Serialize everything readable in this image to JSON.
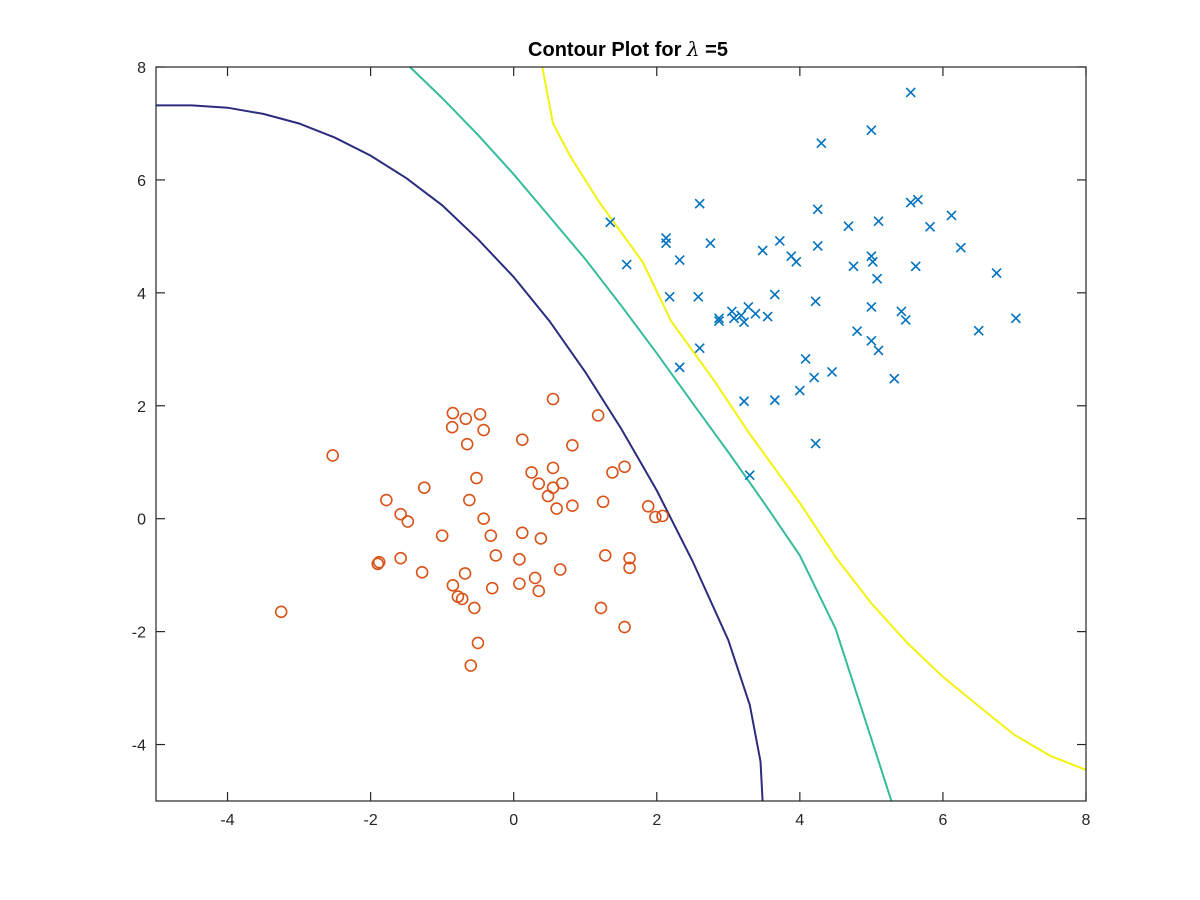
{
  "chart_data": {
    "type": "scatter",
    "title_prefix": "Contour Plot for ",
    "title_symbol": "λ",
    "title_suffix": " =5",
    "xlabel": "",
    "ylabel": "",
    "xlim": [
      -5,
      8
    ],
    "ylim": [
      -5,
      8
    ],
    "xticks": [
      -4,
      -2,
      0,
      2,
      4,
      6,
      8
    ],
    "yticks": [
      -4,
      -2,
      0,
      2,
      4,
      6,
      8
    ],
    "xtick_labels": [
      "-4",
      "-2",
      "0",
      "2",
      "4",
      "6",
      "8"
    ],
    "ytick_labels": [
      "-4",
      "-2",
      "0",
      "2",
      "4",
      "6",
      "8"
    ],
    "grid": false,
    "series": [
      {
        "marker": "x",
        "color": "#0072bd",
        "points": [
          [
            5.55,
            7.55
          ],
          [
            4.3,
            6.65
          ],
          [
            5.0,
            6.88
          ],
          [
            2.6,
            5.58
          ],
          [
            1.35,
            5.25
          ],
          [
            5.55,
            5.6
          ],
          [
            5.65,
            5.65
          ],
          [
            6.12,
            5.37
          ],
          [
            5.1,
            5.27
          ],
          [
            4.25,
            5.48
          ],
          [
            4.68,
            5.18
          ],
          [
            5.82,
            5.17
          ],
          [
            2.13,
            4.97
          ],
          [
            2.13,
            4.88
          ],
          [
            2.75,
            4.88
          ],
          [
            3.72,
            4.92
          ],
          [
            4.25,
            4.83
          ],
          [
            6.25,
            4.8
          ],
          [
            3.48,
            4.75
          ],
          [
            3.88,
            4.65
          ],
          [
            5.0,
            4.65
          ],
          [
            1.58,
            4.5
          ],
          [
            2.32,
            4.58
          ],
          [
            3.95,
            4.55
          ],
          [
            5.02,
            4.55
          ],
          [
            4.75,
            4.47
          ],
          [
            5.62,
            4.47
          ],
          [
            6.75,
            4.35
          ],
          [
            5.08,
            4.25
          ],
          [
            2.18,
            3.93
          ],
          [
            2.58,
            3.93
          ],
          [
            3.65,
            3.97
          ],
          [
            4.22,
            3.85
          ],
          [
            3.28,
            3.75
          ],
          [
            5.0,
            3.75
          ],
          [
            3.05,
            3.67
          ],
          [
            3.18,
            3.6
          ],
          [
            3.38,
            3.63
          ],
          [
            3.55,
            3.58
          ],
          [
            5.42,
            3.67
          ],
          [
            7.02,
            3.55
          ],
          [
            2.87,
            3.55
          ],
          [
            2.87,
            3.5
          ],
          [
            3.08,
            3.55
          ],
          [
            3.22,
            3.48
          ],
          [
            5.48,
            3.52
          ],
          [
            6.5,
            3.33
          ],
          [
            4.8,
            3.32
          ],
          [
            2.6,
            3.02
          ],
          [
            5.0,
            3.15
          ],
          [
            5.1,
            2.98
          ],
          [
            4.08,
            2.83
          ],
          [
            2.32,
            2.68
          ],
          [
            4.45,
            2.6
          ],
          [
            4.2,
            2.5
          ],
          [
            5.32,
            2.48
          ],
          [
            4.0,
            2.27
          ],
          [
            3.22,
            2.08
          ],
          [
            3.65,
            2.1
          ],
          [
            4.22,
            1.33
          ],
          [
            3.3,
            0.77
          ]
        ]
      },
      {
        "marker": "o",
        "color": "#d95319",
        "points": [
          [
            0.55,
            2.12
          ],
          [
            -0.85,
            1.87
          ],
          [
            -0.47,
            1.85
          ],
          [
            1.18,
            1.83
          ],
          [
            -0.67,
            1.77
          ],
          [
            -0.86,
            1.62
          ],
          [
            -0.42,
            1.57
          ],
          [
            0.12,
            1.4
          ],
          [
            -0.65,
            1.32
          ],
          [
            0.82,
            1.3
          ],
          [
            -2.53,
            1.12
          ],
          [
            1.55,
            0.92
          ],
          [
            0.55,
            0.9
          ],
          [
            1.38,
            0.82
          ],
          [
            0.25,
            0.82
          ],
          [
            -0.52,
            0.72
          ],
          [
            0.35,
            0.62
          ],
          [
            0.68,
            0.63
          ],
          [
            0.55,
            0.55
          ],
          [
            -1.25,
            0.55
          ],
          [
            0.48,
            0.4
          ],
          [
            -1.78,
            0.33
          ],
          [
            -0.62,
            0.33
          ],
          [
            1.25,
            0.3
          ],
          [
            0.82,
            0.23
          ],
          [
            1.88,
            0.22
          ],
          [
            0.6,
            0.18
          ],
          [
            -1.58,
            0.08
          ],
          [
            2.08,
            0.05
          ],
          [
            1.98,
            0.03
          ],
          [
            -0.42,
            0.0
          ],
          [
            -1.48,
            -0.05
          ],
          [
            -1.0,
            -0.3
          ],
          [
            -0.32,
            -0.3
          ],
          [
            0.12,
            -0.25
          ],
          [
            0.38,
            -0.35
          ],
          [
            -0.25,
            -0.65
          ],
          [
            1.28,
            -0.65
          ],
          [
            -1.58,
            -0.7
          ],
          [
            0.08,
            -0.72
          ],
          [
            1.62,
            -0.7
          ],
          [
            -1.88,
            -0.77
          ],
          [
            -1.9,
            -0.8
          ],
          [
            1.62,
            -0.87
          ],
          [
            0.65,
            -0.9
          ],
          [
            -1.28,
            -0.95
          ],
          [
            -0.68,
            -0.97
          ],
          [
            0.3,
            -1.05
          ],
          [
            0.08,
            -1.15
          ],
          [
            -0.85,
            -1.18
          ],
          [
            -0.3,
            -1.23
          ],
          [
            0.35,
            -1.28
          ],
          [
            -0.78,
            -1.38
          ],
          [
            -0.72,
            -1.42
          ],
          [
            -3.25,
            -1.65
          ],
          [
            1.22,
            -1.58
          ],
          [
            -0.55,
            -1.58
          ],
          [
            1.55,
            -1.92
          ],
          [
            -0.5,
            -2.2
          ],
          [
            -0.6,
            -2.6
          ]
        ]
      }
    ],
    "contours": [
      {
        "color": "#2b2c7e",
        "points": [
          [
            -5,
            7.32
          ],
          [
            -4.5,
            7.32
          ],
          [
            -4.0,
            7.28
          ],
          [
            -3.5,
            7.17
          ],
          [
            -3.0,
            7.0
          ],
          [
            -2.5,
            6.75
          ],
          [
            -2.0,
            6.43
          ],
          [
            -1.5,
            6.03
          ],
          [
            -1.0,
            5.55
          ],
          [
            -0.5,
            4.95
          ],
          [
            0.0,
            4.28
          ],
          [
            0.5,
            3.5
          ],
          [
            1.0,
            2.6
          ],
          [
            1.5,
            1.6
          ],
          [
            2.0,
            0.5
          ],
          [
            2.5,
            -0.75
          ],
          [
            3.0,
            -2.15
          ],
          [
            3.3,
            -3.3
          ],
          [
            3.45,
            -4.3
          ],
          [
            3.48,
            -5.0
          ]
        ]
      },
      {
        "color": "#36bc9c",
        "points": [
          [
            -1.45,
            8.0
          ],
          [
            -1.0,
            7.45
          ],
          [
            -0.5,
            6.8
          ],
          [
            0.0,
            6.1
          ],
          [
            0.5,
            5.35
          ],
          [
            1.0,
            4.6
          ],
          [
            1.5,
            3.78
          ],
          [
            2.0,
            2.93
          ],
          [
            2.5,
            2.05
          ],
          [
            3.0,
            1.18
          ],
          [
            3.5,
            0.28
          ],
          [
            4.0,
            -0.65
          ],
          [
            4.5,
            -1.95
          ],
          [
            5.0,
            -3.9
          ],
          [
            5.28,
            -5.0
          ]
        ]
      },
      {
        "color": "#f2f20d",
        "points": [
          [
            0.4,
            8.0
          ],
          [
            0.55,
            7.0
          ],
          [
            0.8,
            6.4
          ],
          [
            1.2,
            5.6
          ],
          [
            1.8,
            4.55
          ],
          [
            2.2,
            3.5
          ],
          [
            2.8,
            2.45
          ],
          [
            3.3,
            1.5
          ],
          [
            4.0,
            0.28
          ],
          [
            4.5,
            -0.68
          ],
          [
            5.0,
            -1.5
          ],
          [
            5.5,
            -2.2
          ],
          [
            6.0,
            -2.8
          ],
          [
            6.5,
            -3.32
          ],
          [
            7.0,
            -3.83
          ],
          [
            7.5,
            -4.2
          ],
          [
            8.0,
            -4.45
          ]
        ]
      }
    ]
  }
}
